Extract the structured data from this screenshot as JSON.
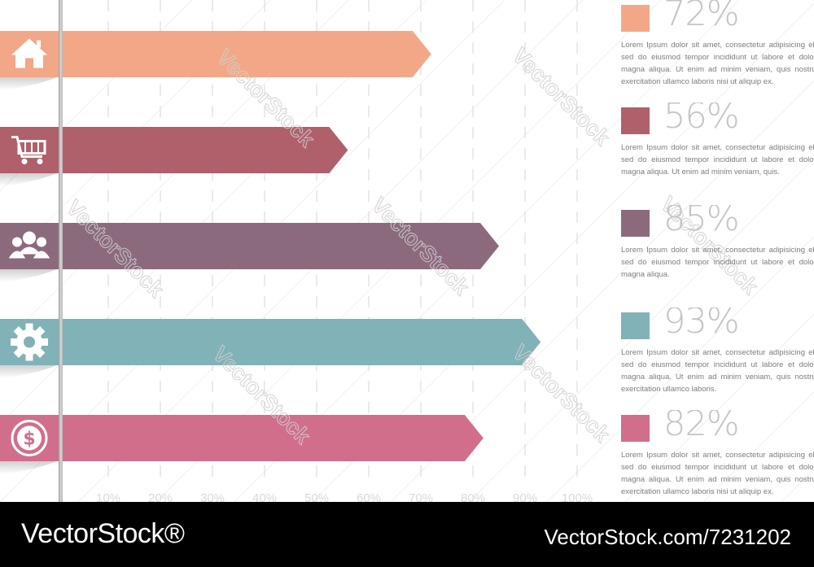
{
  "chart_data": {
    "type": "bar",
    "orientation": "horizontal",
    "categories": [
      "home-icon",
      "cart-icon",
      "users-icon",
      "gear-icon",
      "dollar-icon"
    ],
    "values": [
      72,
      56,
      85,
      93,
      82
    ],
    "colors": [
      "#f2a886",
      "#b0606a",
      "#8c6a7e",
      "#81b2b8",
      "#d16e8c"
    ],
    "x_ticks": [
      "10%",
      "20%",
      "30%",
      "40%",
      "50%",
      "60%",
      "70%",
      "80%",
      "90%",
      "100%"
    ],
    "xlim": [
      0,
      100
    ],
    "grid": true
  },
  "legend": [
    {
      "value": "72%",
      "color": "#f2a886",
      "text": "Lorem Ipsum dolor sit amet, consectetur adipisicing elit, sed do eiusmod tempor incididunt ut labore et dolore magna aliqua. Ut enim ad minim veniam, quis nostrud exercitation ullamco laboris nisi ut aliquip ex."
    },
    {
      "value": "56%",
      "color": "#b0606a",
      "text": "Lorem Ipsum dolor sit amet, consectetur adipisicing elit, sed do eiusmod tempor incididunt ut labore et dolore magna aliqua. Ut enim ad minim veniam, quis."
    },
    {
      "value": "85%",
      "color": "#8c6a7e",
      "text": "Lorem Ipsum dolor sit amet, consectetur adipisicing elit, sed do eiusmod tempor incididunt ut labore et dolore magna aliqua."
    },
    {
      "value": "93%",
      "color": "#81b2b8",
      "text": "Lorem Ipsum dolor sit amet, consectetur adipisicing elit, sed do eiusmod tempor incididunt ut labore et dolore magna aliqua. Ut enim ad minim veniam, quis nostrud exercitation ullamco laboris."
    },
    {
      "value": "82%",
      "color": "#d16e8c",
      "text": "Lorem Ipsum dolor sit amet, consectetur adipisicing elit, sed do eiusmod tempor incididunt ut labore et dolore magna aliqua. Ut enim ad minim veniam, quis nostrud exercitation ullamco laboris nisi ut aliquip ex."
    }
  ],
  "watermark": "VectorStock",
  "footer": {
    "brand": "VectorStock®",
    "url": "VectorStock.com/7231202"
  }
}
